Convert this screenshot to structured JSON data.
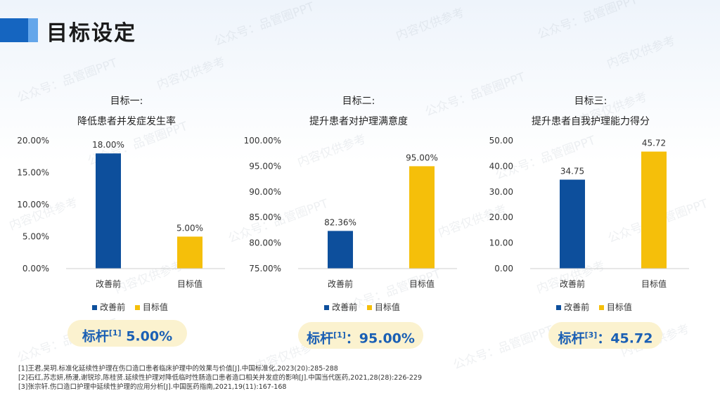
{
  "page": {
    "title": "目标设定"
  },
  "colors": {
    "accent": "#1565c0",
    "before": "#0d4f9c",
    "target": "#f5bf0a",
    "benchmark_text": "#1a5fb4",
    "benchmark_bg": "#fbf2cf"
  },
  "legend": {
    "before": "改善前",
    "target": "目标值"
  },
  "chart_data": [
    {
      "type": "bar",
      "title_line1": "目标一:",
      "title_line2": "降低患者并发症发生率",
      "categories": [
        "改善前",
        "目标值"
      ],
      "values": [
        18.0,
        5.0
      ],
      "value_labels": [
        "18.00%",
        "5.00%"
      ],
      "ylim": [
        0,
        20
      ],
      "yticks": [
        "0.00%",
        "5.00%",
        "10.00%",
        "15.00%",
        "20.00%"
      ],
      "ytick_values": [
        0,
        5,
        10,
        15,
        20
      ],
      "grid": false,
      "legend_position": "bottom"
    },
    {
      "type": "bar",
      "title_line1": "目标二:",
      "title_line2": "提升患者对护理满意度",
      "categories": [
        "改善前",
        "目标值"
      ],
      "values": [
        82.36,
        95.0
      ],
      "value_labels": [
        "82.36%",
        "95.00%"
      ],
      "ylim": [
        75,
        100
      ],
      "yticks": [
        "75.00%",
        "80.00%",
        "85.00%",
        "90.00%",
        "95.00%",
        "100.00%"
      ],
      "ytick_values": [
        75,
        80,
        85,
        90,
        95,
        100
      ],
      "grid": false,
      "legend_position": "bottom"
    },
    {
      "type": "bar",
      "title_line1": "目标三:",
      "title_line2": "提升患者自我护理能力得分",
      "categories": [
        "改善前",
        "目标值"
      ],
      "values": [
        34.75,
        45.72
      ],
      "value_labels": [
        "34.75",
        "45.72"
      ],
      "ylim": [
        0,
        50
      ],
      "yticks": [
        "0.00",
        "10.00",
        "20.00",
        "30.00",
        "40.00",
        "50.00"
      ],
      "ytick_values": [
        0,
        10,
        20,
        30,
        40,
        50
      ],
      "grid": false,
      "legend_position": "bottom"
    }
  ],
  "benchmarks": [
    {
      "label": "标杆",
      "ref": "[1]",
      "value": " 5.00%"
    },
    {
      "label": "标杆",
      "ref": "[1]",
      "value": "：95.00%"
    },
    {
      "label": "标杆",
      "ref": "[3]",
      "value": "：45.72"
    }
  ],
  "references": [
    "[1]王君,吴玥.标准化延续性护理在伤口造口患者临床护理中的效果与价值[J].中国标准化,2023(20):285-288",
    "[2]石红,苏志妍,杨漫,谢锐珍,陈桂贤.延续性护理对降低临时性肠造口患者造口相关并发症的影响[J].中国当代医药,2021,28(28):226-229",
    "[3]张宗轩.伤口造口护理中延续性护理的应用分析[J].中国医药指南,2021,19(11):167-168"
  ],
  "watermark": {
    "line_a": "公众号：品管圈PPT",
    "line_b": "内容仅供参考"
  }
}
